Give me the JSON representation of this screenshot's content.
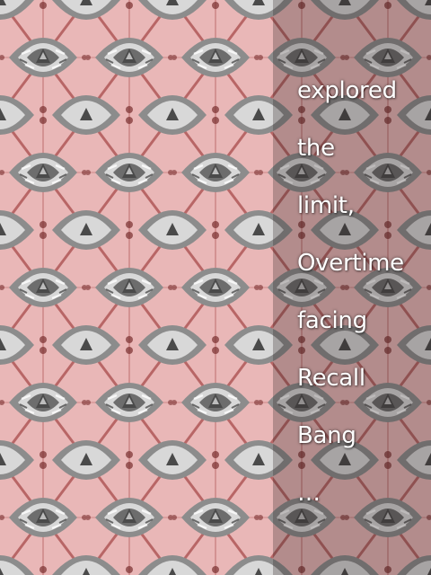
{
  "colors": {
    "background_pink": "#e8b4b4",
    "tile_gray": "#8f8f8f",
    "tile_light": "#e6e6e6",
    "line_red": "#9b3b3b",
    "text": "#ffffff"
  },
  "pattern": {
    "description_icon": "kaleidoscope-pattern-icon"
  },
  "poem": {
    "lines": [
      "explored",
      "the",
      "limit,",
      "Overtime",
      "facing",
      "Recall",
      "Bang",
      "…"
    ]
  }
}
